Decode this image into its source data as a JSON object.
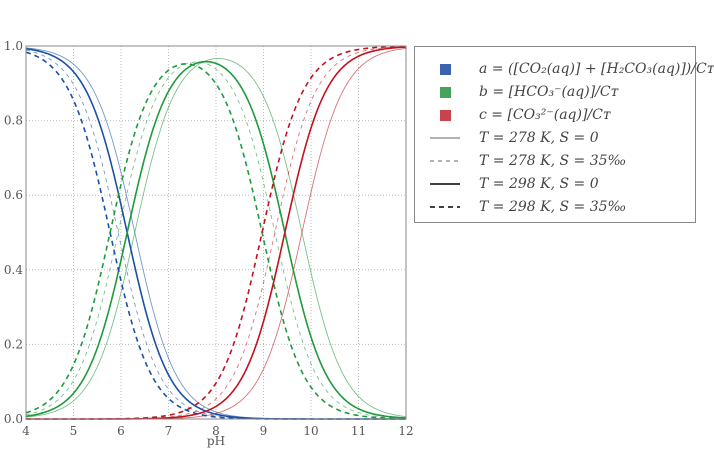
{
  "chart_data": {
    "type": "line",
    "title": "",
    "xlabel": "pH",
    "ylabel": "",
    "xlim": [
      4,
      12
    ],
    "ylim": [
      0.0,
      1.0
    ],
    "grid": true,
    "xticks": [
      "4",
      "5",
      "6",
      "7",
      "8",
      "9",
      "10",
      "11",
      "12"
    ],
    "yticks": [
      "0.0",
      "0.2",
      "0.4",
      "0.6",
      "0.8",
      "1.0"
    ],
    "legend_placement": "outside-right-top",
    "species": [
      {
        "name": "a",
        "color": "#1a50a8"
      },
      {
        "name": "b",
        "color": "#1f9a3c"
      },
      {
        "name": "c",
        "color": "#c2121f"
      }
    ],
    "conditions": [
      {
        "name": "T = 278 K, S = 0",
        "pK1": 6.29,
        "pK2": 9.81,
        "style": "thin-solid"
      },
      {
        "name": "T = 278 K, S = 35‰",
        "pK1": 5.94,
        "pK2": 9.24,
        "style": "thin-dashed"
      },
      {
        "name": "T = 298 K, S = 0",
        "pK1": 6.13,
        "pK2": 9.45,
        "style": "thick-solid"
      },
      {
        "name": "T = 298 K, S = 35‰",
        "pK1": 5.77,
        "pK2": 8.97,
        "style": "thick-dashed"
      }
    ]
  },
  "legend": [
    {
      "label": "a = ([CO₂(aq)] + [H₂CO₃(aq)])/Cᴛ",
      "kind": "swatch",
      "color": "#3a64ad"
    },
    {
      "label": "b = [HCO₃⁻(aq)]/Cᴛ",
      "kind": "swatch",
      "color": "#46a35a"
    },
    {
      "label": "c = [CO₃²⁻(aq)]/Cᴛ",
      "kind": "swatch",
      "color": "#c9434b"
    },
    {
      "label": "T = 278 K, S = 0",
      "kind": "thin-solid"
    },
    {
      "label": "T = 278 K, S = 35‰",
      "kind": "thin-dashed"
    },
    {
      "label": "T = 298 K, S = 0",
      "kind": "thick-solid"
    },
    {
      "label": "T = 298 K, S = 35‰",
      "kind": "thick-dashed"
    }
  ]
}
